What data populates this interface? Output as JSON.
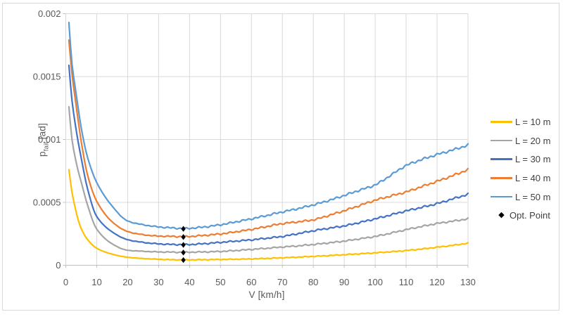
{
  "chart_data": {
    "type": "line",
    "xlabel": "V [km/h]",
    "ylabel": "p_fail [ad]",
    "ylabel_parts": {
      "base": "p",
      "sub": "fail",
      "unit": " [ad]"
    },
    "xlim": [
      0,
      130
    ],
    "ylim": [
      0,
      0.002
    ],
    "xticks": [
      0,
      10,
      20,
      30,
      40,
      50,
      60,
      70,
      80,
      90,
      100,
      110,
      120,
      130
    ],
    "ytick_values": [
      0,
      0.0005,
      0.001,
      0.0015,
      0.002
    ],
    "ytick_labels": [
      "0",
      "0.0005",
      "0.001",
      "0.0015",
      "0.002"
    ],
    "grid": true,
    "legend_position": "right",
    "x": [
      1,
      2,
      3,
      4,
      5,
      7,
      10,
      15,
      20,
      25,
      30,
      35,
      38,
      40,
      45,
      50,
      55,
      60,
      65,
      70,
      75,
      80,
      85,
      90,
      95,
      100,
      105,
      110,
      115,
      120,
      125,
      130
    ],
    "series": [
      {
        "key": "l10",
        "name": "L = 10 m",
        "color": "#FFC000",
        "values": [
          0.00076,
          0.00058,
          0.00046,
          0.00036,
          0.00029,
          0.000205,
          0.000135,
          8.8e-05,
          6.35e-05,
          5.35e-05,
          4.75e-05,
          4.35e-05,
          4.25e-05,
          4.3e-05,
          4.42e-05,
          4.58e-05,
          4.78e-05,
          5.05e-05,
          5.45e-05,
          5.92e-05,
          6.45e-05,
          7.05e-05,
          7.68e-05,
          8.38e-05,
          9.1e-05,
          9.88e-05,
          0.000107,
          0.000117,
          0.000129,
          0.000143,
          0.000158,
          0.000175
        ]
      },
      {
        "key": "l20",
        "name": "L = 20 m",
        "color": "#A5A5A5",
        "values": [
          0.00126,
          0.001,
          0.00086,
          0.00075,
          0.00066,
          0.00048,
          0.000287,
          0.00017,
          0.000119,
          0.000111,
          0.000106,
          0.000104,
          0.000103,
          0.000104,
          0.000106,
          0.00011,
          0.000117,
          0.000126,
          0.000135,
          0.000145,
          0.000154,
          0.000165,
          0.000178,
          0.000192,
          0.00021,
          0.000229,
          0.000255,
          0.000283,
          0.000308,
          0.000332,
          0.00035,
          0.000369
        ]
      },
      {
        "key": "l30",
        "name": "L = 30 m",
        "color": "#4472C4",
        "values": [
          0.00159,
          0.00131,
          0.00113,
          0.00098,
          0.00085,
          0.00061,
          0.000387,
          0.000265,
          0.000203,
          0.000182,
          0.00017,
          0.000165,
          0.000164,
          0.000165,
          0.000172,
          0.000182,
          0.000192,
          0.000202,
          0.000215,
          0.000229,
          0.000251,
          0.000274,
          0.000294,
          0.000313,
          0.00034,
          0.000369,
          0.0004,
          0.000432,
          0.00046,
          0.00049,
          0.000527,
          0.000564
        ]
      },
      {
        "key": "l40",
        "name": "L = 40 m",
        "color": "#ED7D31",
        "values": [
          0.00179,
          0.00152,
          0.00133,
          0.00115,
          0.00098,
          0.00072,
          0.000508,
          0.000345,
          0.000268,
          0.000243,
          0.000232,
          0.000229,
          0.000227,
          0.000229,
          0.000238,
          0.000249,
          0.000266,
          0.000285,
          0.000308,
          0.000331,
          0.000345,
          0.000361,
          0.000396,
          0.000434,
          0.000475,
          0.000517,
          0.00055,
          0.000583,
          0.000625,
          0.000667,
          0.000712,
          0.00076
        ]
      },
      {
        "key": "l50",
        "name": "L = 50 m",
        "color": "#5B9BD5",
        "values": [
          0.00193,
          0.0016,
          0.00142,
          0.00125,
          0.00109,
          0.00086,
          0.000657,
          0.00047,
          0.000352,
          0.000322,
          0.000305,
          0.000296,
          0.000292,
          0.000294,
          0.000305,
          0.000322,
          0.000345,
          0.000369,
          0.000396,
          0.000424,
          0.00045,
          0.00048,
          0.000515,
          0.000555,
          0.000597,
          0.000639,
          0.000715,
          0.000793,
          0.00084,
          0.00088,
          0.000916,
          0.000955
        ]
      }
    ],
    "opt_points": {
      "name": "Opt. Point",
      "marker": "diamond",
      "color": "#000000",
      "x": 38,
      "values": [
        4.25e-05,
        0.000103,
        0.000164,
        0.000227,
        0.000292
      ]
    }
  },
  "palette": {
    "background": "#FFFFFF",
    "figure_border": "#D9D9D9",
    "grid": "#D9D9D9",
    "axis_line": "#BFBFBF",
    "tick_text": "#595959",
    "legend_text": "#404040"
  }
}
